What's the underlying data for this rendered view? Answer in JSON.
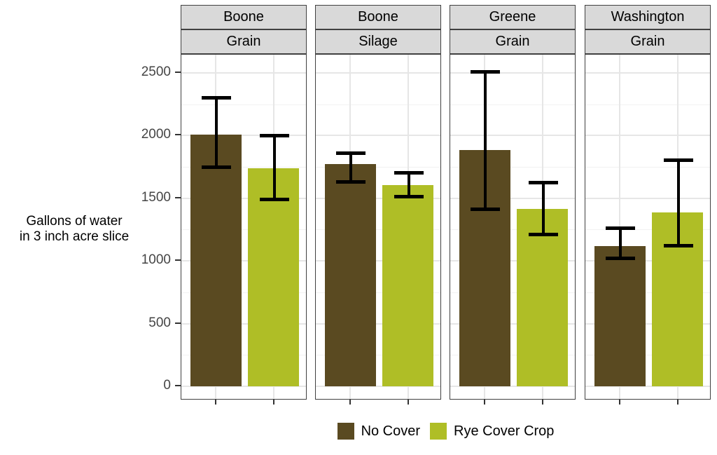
{
  "figure": {
    "y_axis_title": {
      "line1": "Gallons of water",
      "line2": "in 3 inch acre slice"
    },
    "legend": {
      "items": [
        {
          "label": "No Cover",
          "color": "#5A4A21"
        },
        {
          "label": "Rye Cover Crop",
          "color": "#AFBE26"
        }
      ]
    }
  },
  "chart_data": {
    "type": "bar",
    "title": "",
    "xlabel": "",
    "ylabel": "Gallons of water in 3 inch acre slice",
    "y_ticks": [
      0,
      500,
      1000,
      1500,
      2000,
      2500
    ],
    "y_major_grid_step": 500,
    "y_minor_grid_step": 250,
    "panel_value_top": 2645,
    "panel_value_bottom": -112,
    "legend_position": "bottom",
    "grid": true,
    "series": [
      "No Cover",
      "Rye Cover Crop"
    ],
    "series_colors": {
      "No Cover": "#5A4A21",
      "Rye Cover Crop": "#AFBE26"
    },
    "error_bar_color": "#000000",
    "facet_strip_background": "#D9D9D9",
    "facets": [
      {
        "county": "Boone",
        "crop": "Grain",
        "values": [
          {
            "series": "No Cover",
            "value": 2010,
            "err_low": 1750,
            "err_high": 2300
          },
          {
            "series": "Rye Cover Crop",
            "value": 1740,
            "err_low": 1490,
            "err_high": 2000
          }
        ]
      },
      {
        "county": "Boone",
        "crop": "Silage",
        "values": [
          {
            "series": "No Cover",
            "value": 1775,
            "err_low": 1630,
            "err_high": 1860
          },
          {
            "series": "Rye Cover Crop",
            "value": 1605,
            "err_low": 1510,
            "err_high": 1705
          }
        ]
      },
      {
        "county": "Greene",
        "crop": "Grain",
        "values": [
          {
            "series": "No Cover",
            "value": 1885,
            "err_low": 1410,
            "err_high": 2510
          },
          {
            "series": "Rye Cover Crop",
            "value": 1415,
            "err_low": 1210,
            "err_high": 1625
          }
        ]
      },
      {
        "county": "Washington",
        "crop": "Grain",
        "values": [
          {
            "series": "No Cover",
            "value": 1120,
            "err_low": 1020,
            "err_high": 1260
          },
          {
            "series": "Rye Cover Crop",
            "value": 1385,
            "err_low": 1120,
            "err_high": 1805
          }
        ]
      }
    ]
  }
}
